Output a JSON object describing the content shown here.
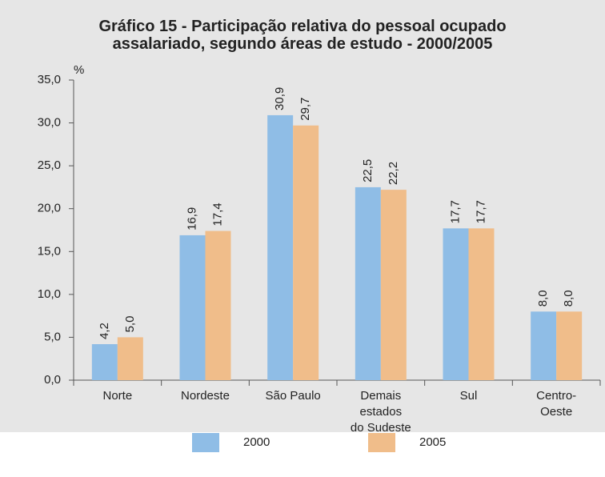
{
  "chart_data": {
    "type": "bar",
    "title": "Gráfico 15 - Participação relativa do pessoal ocupado\nassalariado, segundo áreas de estudo - 2000/2005",
    "y_label": "%",
    "categories": [
      "Norte",
      "Nordeste",
      "São Paulo",
      "Demais\nestados\ndo Sudeste",
      "Sul",
      "Centro-\nOeste"
    ],
    "series": [
      {
        "name": "2000",
        "color": "#8fbde6",
        "values": [
          4.2,
          16.9,
          30.9,
          22.5,
          17.7,
          8.0
        ],
        "value_labels": [
          "4,2",
          "16,9",
          "30,9",
          "22,5",
          "17,7",
          "8,0"
        ]
      },
      {
        "name": "2005",
        "color": "#f0bd8a",
        "values": [
          5.0,
          17.4,
          29.7,
          22.2,
          17.7,
          8.0
        ],
        "value_labels": [
          "5,0",
          "17,4",
          "29,7",
          "22,2",
          "17,7",
          "8,0"
        ]
      }
    ],
    "ylim": [
      0,
      35
    ],
    "yticks": [
      {
        "value": 0,
        "label": "0,0"
      },
      {
        "value": 5,
        "label": "5,0"
      },
      {
        "value": 10,
        "label": "10,0"
      },
      {
        "value": 15,
        "label": "15,0"
      },
      {
        "value": 20,
        "label": "20,0"
      },
      {
        "value": 25,
        "label": "25,0"
      },
      {
        "value": 30,
        "label": "30,0"
      },
      {
        "value": 35,
        "label": "35,0"
      }
    ],
    "legend": "bottom"
  }
}
